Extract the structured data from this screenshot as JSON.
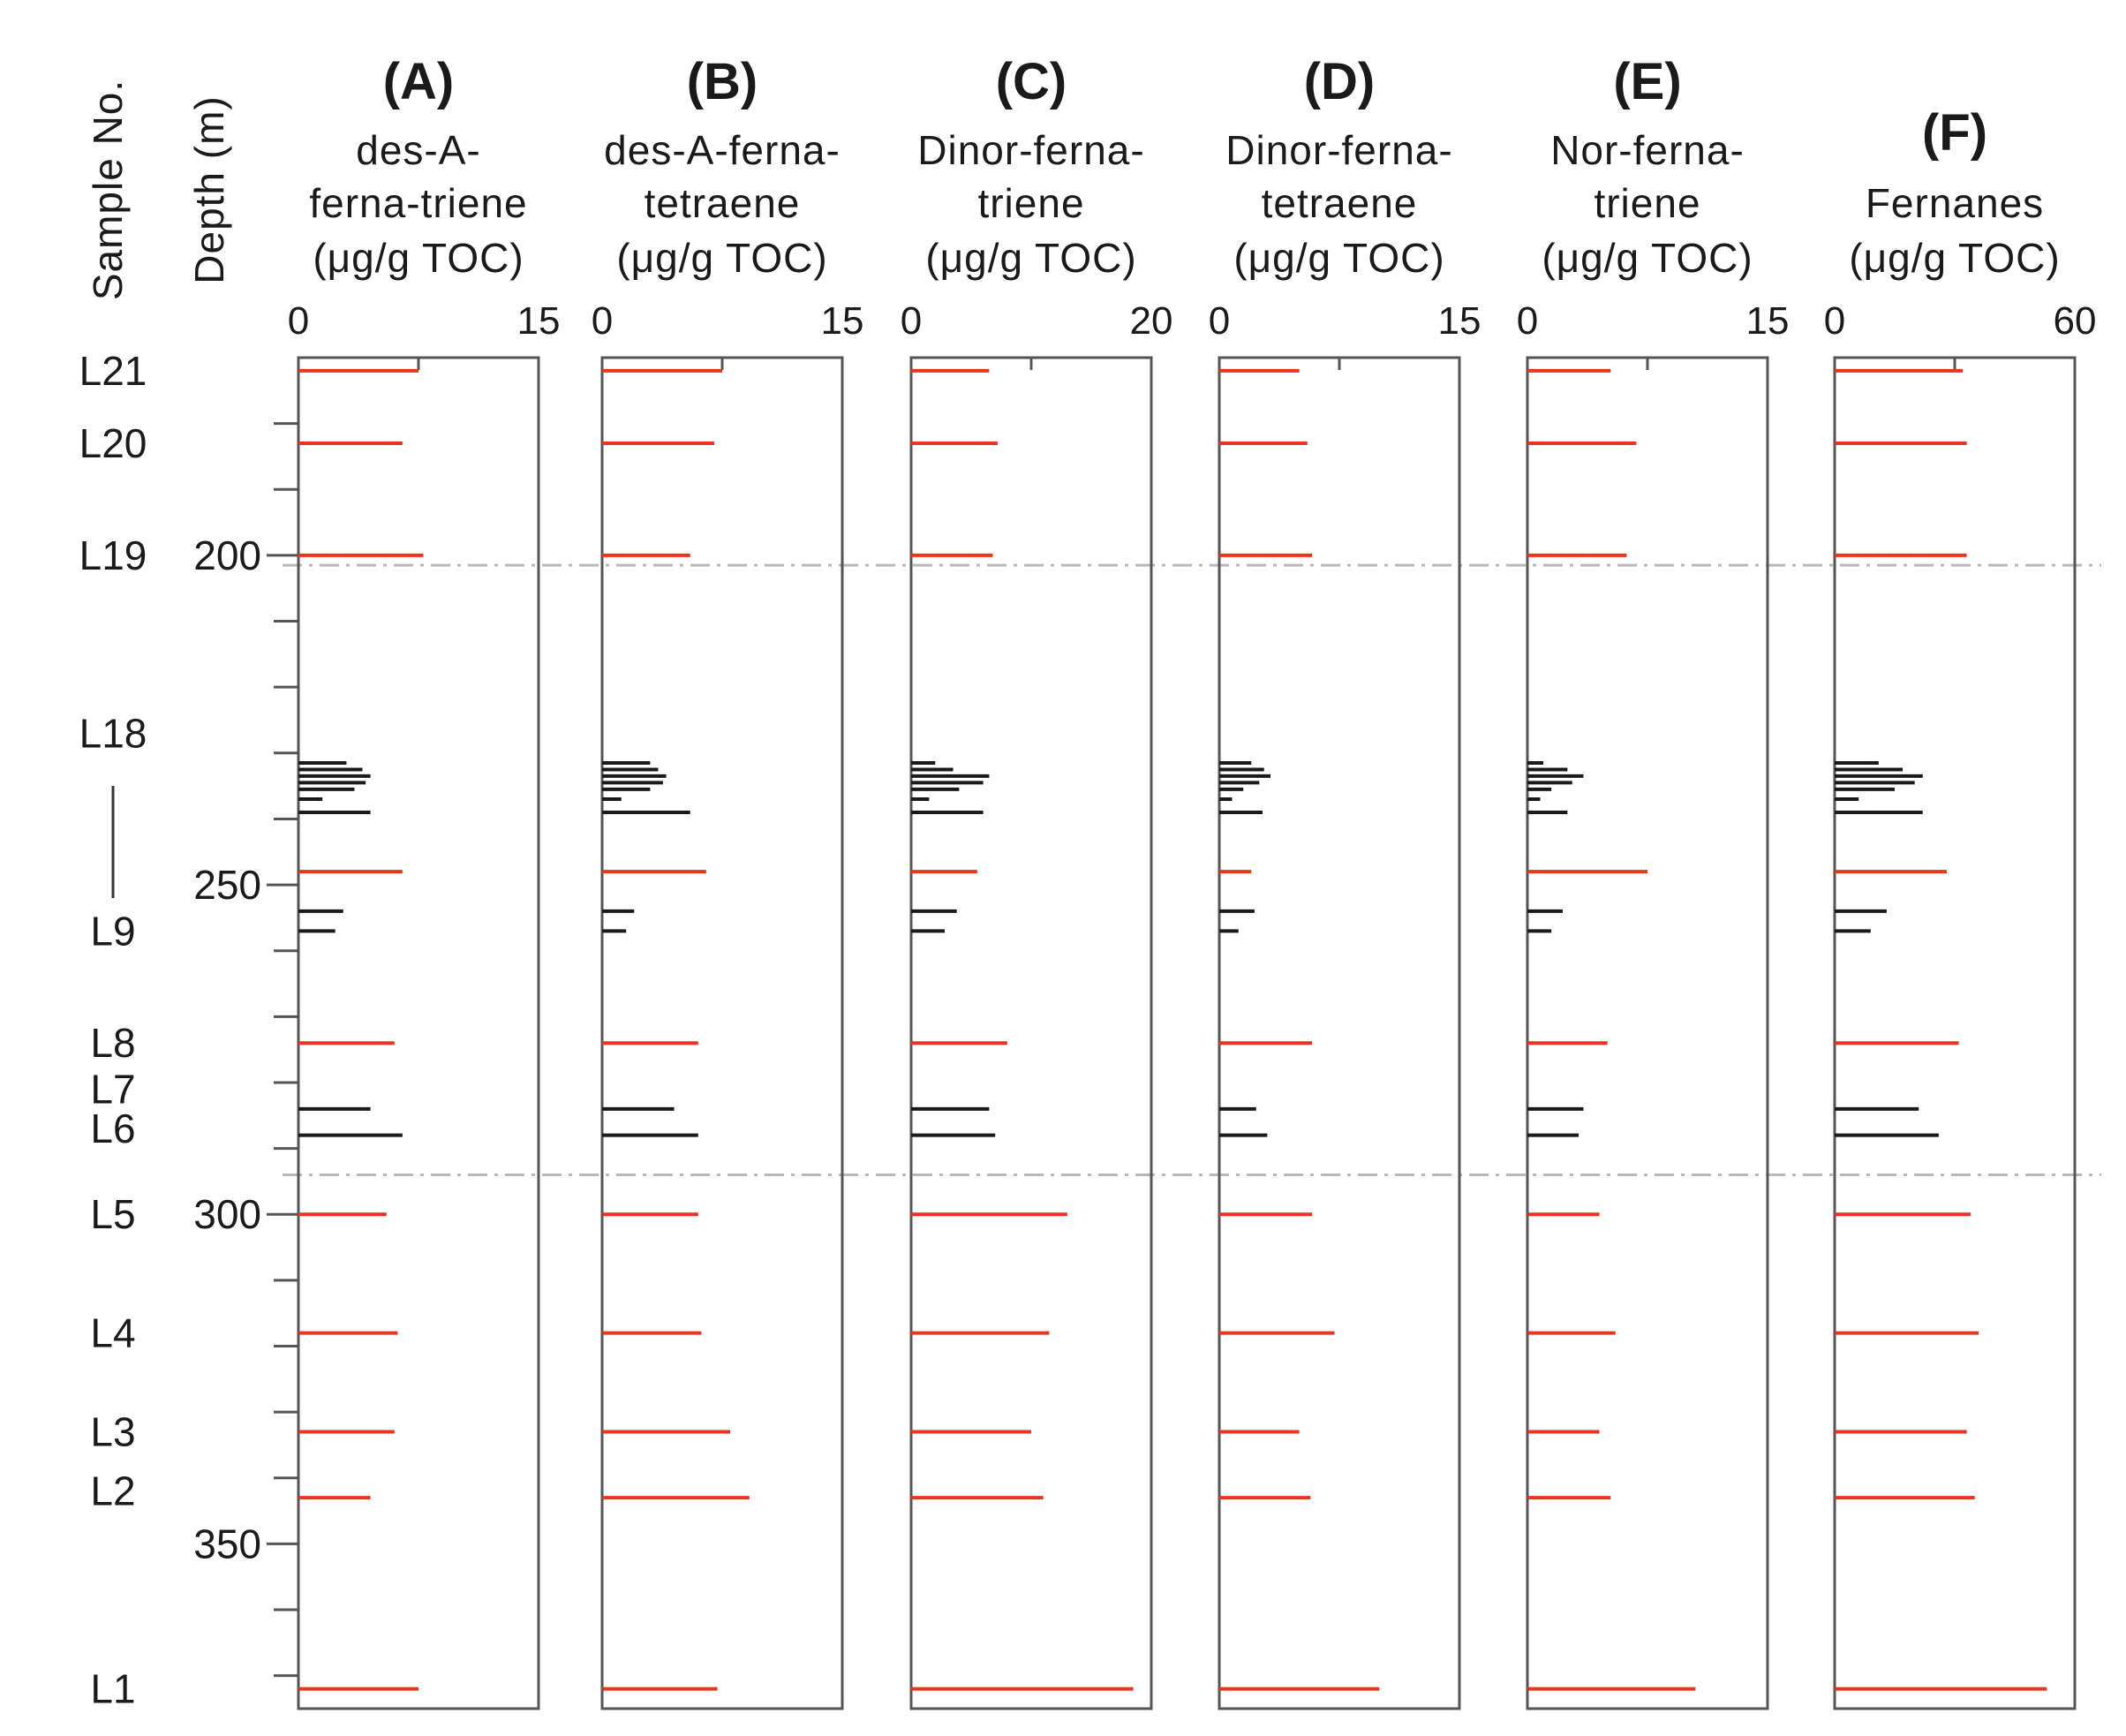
{
  "chart_data": {
    "type": "bar",
    "orientation": "horizontal",
    "y_axis": {
      "title": "Depth (m)",
      "range": [
        170,
        375
      ],
      "major_ticks": [
        200,
        250,
        300,
        350
      ],
      "major_tick_labels": [
        "200",
        "250",
        "300",
        "350"
      ],
      "minor_step": 10,
      "inverted": true
    },
    "sample_axis": {
      "title": "Sample No.",
      "labels": [
        {
          "text": "L21",
          "depth": 172
        },
        {
          "text": "L20",
          "depth": 183
        },
        {
          "text": "L19",
          "depth": 200
        },
        {
          "text": "L18",
          "depth": 227
        },
        {
          "text": "L9",
          "depth": 257
        },
        {
          "text": "L8",
          "depth": 274
        },
        {
          "text": "L7",
          "depth": 281
        },
        {
          "text": "L6",
          "depth": 287
        },
        {
          "text": "L5",
          "depth": 300
        },
        {
          "text": "L4",
          "depth": 318
        },
        {
          "text": "L3",
          "depth": 333
        },
        {
          "text": "L2",
          "depth": 342
        },
        {
          "text": "L1",
          "depth": 372
        }
      ],
      "range_bar": {
        "from_depth": 235,
        "to_depth": 252
      }
    },
    "boundaries": [
      201.5,
      294
    ],
    "colors": {
      "red": "#e8351f",
      "black": "#1a1a1a",
      "axis": "#555555",
      "boundary": "#b8b8b8"
    },
    "depths": [
      172,
      183,
      200,
      231.5,
      232.5,
      233.5,
      234.5,
      235.5,
      237,
      239,
      248,
      254,
      257,
      274,
      284,
      288,
      300,
      318,
      333,
      343,
      372
    ],
    "series_color": [
      "red",
      "red",
      "red",
      "black",
      "black",
      "black",
      "black",
      "black",
      "black",
      "black",
      "red",
      "black",
      "black",
      "red",
      "black",
      "black",
      "red",
      "red",
      "red",
      "red",
      "red"
    ],
    "panels": [
      {
        "label": "(A)",
        "name_lines": [
          "des-A-",
          "ferna-triene"
        ],
        "unit": "(μg/g TOC)",
        "xlim": [
          0,
          15
        ],
        "tick_labels": [
          "0",
          "15"
        ],
        "values": [
          7.5,
          6.5,
          7.8,
          3.0,
          4.0,
          4.5,
          4.2,
          3.5,
          1.5,
          4.5,
          6.5,
          2.8,
          2.3,
          6.0,
          4.5,
          6.5,
          5.5,
          6.2,
          6.0,
          4.5,
          7.5
        ]
      },
      {
        "label": "(B)",
        "name_lines": [
          "des-A-ferna-",
          "tetraene"
        ],
        "unit": "(μg/g TOC)",
        "xlim": [
          0,
          15
        ],
        "tick_labels": [
          "0",
          "15"
        ],
        "values": [
          7.5,
          7.0,
          5.5,
          3.0,
          3.5,
          4.0,
          3.8,
          3.0,
          1.2,
          5.5,
          6.5,
          2.0,
          1.5,
          6.0,
          4.5,
          6.0,
          6.0,
          6.2,
          8.0,
          9.2,
          7.2
        ]
      },
      {
        "label": "(C)",
        "name_lines": [
          "Dinor-ferna-",
          "triene"
        ],
        "unit": "(μg/g TOC)",
        "xlim": [
          0,
          20
        ],
        "tick_labels": [
          "0",
          "20"
        ],
        "values": [
          6.5,
          7.2,
          6.8,
          2.0,
          3.5,
          6.5,
          6.0,
          4.0,
          1.5,
          6.0,
          5.5,
          3.8,
          2.8,
          8.0,
          6.5,
          7.0,
          13.0,
          11.5,
          10.0,
          11.0,
          18.5
        ]
      },
      {
        "label": "(D)",
        "name_lines": [
          "Dinor-ferna-",
          "tetraene"
        ],
        "unit": "(μg/g TOC)",
        "xlim": [
          0,
          15
        ],
        "tick_labels": [
          "0",
          "15"
        ],
        "values": [
          5.0,
          5.5,
          5.8,
          2.0,
          2.8,
          3.2,
          2.5,
          1.5,
          0.8,
          2.7,
          2.0,
          2.2,
          1.2,
          5.8,
          2.3,
          3.0,
          5.8,
          7.2,
          5.0,
          5.7,
          10.0
        ]
      },
      {
        "label": "(E)",
        "name_lines": [
          "Nor-ferna-",
          "triene"
        ],
        "unit": "(μg/g TOC)",
        "xlim": [
          0,
          15
        ],
        "tick_labels": [
          "0",
          "15"
        ],
        "values": [
          5.2,
          6.8,
          6.2,
          1.0,
          2.5,
          3.5,
          2.8,
          1.5,
          0.8,
          2.5,
          7.5,
          2.2,
          1.5,
          5.0,
          3.5,
          3.2,
          4.5,
          5.5,
          4.5,
          5.2,
          10.5
        ]
      },
      {
        "label": "(F)",
        "name_lines": [
          "",
          "Fernanes"
        ],
        "unit": "(μg/g TOC)",
        "xlim": [
          0,
          60
        ],
        "tick_labels": [
          "0",
          "60"
        ],
        "values": [
          32,
          33,
          33,
          11,
          17,
          22,
          20,
          15,
          6,
          22,
          28,
          13,
          9,
          31,
          21,
          26,
          34,
          36,
          33,
          35,
          53
        ]
      }
    ]
  }
}
